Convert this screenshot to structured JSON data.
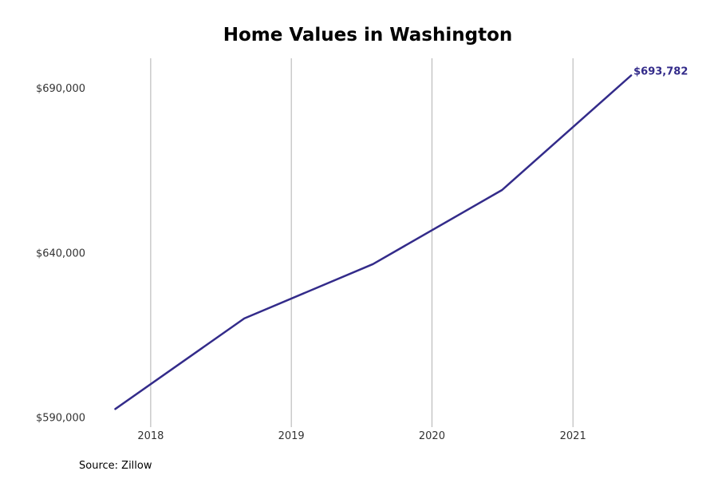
{
  "chart_data": {
    "type": "line",
    "title": "Home Values in Washington",
    "xlabel": "",
    "ylabel": "",
    "source": "Source: Zillow",
    "x_ticks": [
      "2018",
      "2019",
      "2020",
      "2021"
    ],
    "y_ticks": [
      "$590,000",
      "$640,000",
      "$690,000"
    ],
    "xlim": [
      "2017-08-01",
      "2021-11-01"
    ],
    "ylim": [
      587000,
      699000
    ],
    "grid": "vertical",
    "line_color": "#332b8a",
    "series": [
      {
        "points": [
          {
            "x": "2017-10-01",
            "y": 592500
          },
          {
            "x": "2018-09-01",
            "y": 620000
          },
          {
            "x": "2019-08-01",
            "y": 636500
          },
          {
            "x": "2020-07-01",
            "y": 659000
          },
          {
            "x": "2021-06-01",
            "y": 693782
          }
        ]
      }
    ],
    "end_label": "$693,782"
  }
}
